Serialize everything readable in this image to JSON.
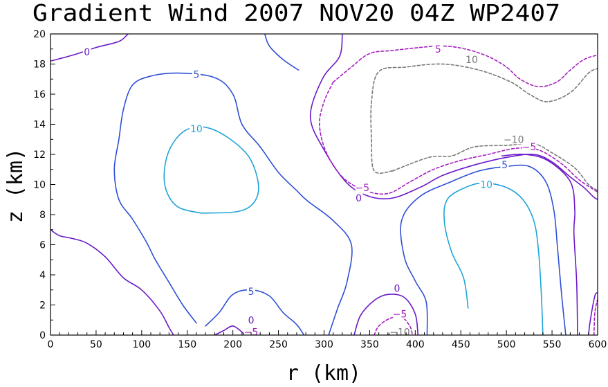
{
  "chart_data": {
    "type": "contour",
    "title": "Gradient Wind 2007 NOV20 04Z  WP2407",
    "xlabel": "r (km)",
    "ylabel": "z (km)",
    "xlim": [
      0,
      600
    ],
    "ylim": [
      0,
      20
    ],
    "xticks": [
      0,
      50,
      100,
      150,
      200,
      250,
      300,
      350,
      400,
      450,
      500,
      550,
      600
    ],
    "yticks": [
      0,
      2,
      4,
      6,
      8,
      10,
      12,
      14,
      16,
      18,
      20
    ],
    "colors": {
      "10": "#1fa3d9",
      "5": "#2f4fd4",
      "0": "#6a19c8",
      "-5": "#a51fbf",
      "-10": "#777777"
    },
    "contours": [
      {
        "level": 0,
        "color_key": "0",
        "dashed": false,
        "points": [
          [
            0,
            18.2
          ],
          [
            25,
            18.6
          ],
          [
            50,
            19.1
          ],
          [
            75,
            19.5
          ],
          [
            85,
            20
          ]
        ]
      },
      {
        "level": 5,
        "color_key": "5",
        "dashed": false,
        "points": [
          [
            235,
            20
          ],
          [
            240,
            19.2
          ],
          [
            255,
            18.3
          ],
          [
            272,
            17.6
          ]
        ]
      },
      {
        "level": 0,
        "color_key": "0",
        "dashed": false,
        "points": [
          [
            0,
            7
          ],
          [
            10,
            6.6
          ],
          [
            25,
            6.4
          ],
          [
            40,
            6.1
          ],
          [
            60,
            5.2
          ],
          [
            80,
            3.8
          ],
          [
            100,
            3
          ],
          [
            120,
            1.6
          ],
          [
            130,
            0.5
          ],
          [
            135,
            0
          ]
        ]
      },
      {
        "level": 5,
        "color_key": "5",
        "dashed": false,
        "points": [
          [
            160,
            0.8
          ],
          [
            145,
            2
          ],
          [
            130,
            3.5
          ],
          [
            115,
            5
          ],
          [
            105,
            6.2
          ],
          [
            90,
            7.7
          ],
          [
            75,
            9
          ],
          [
            70,
            11
          ],
          [
            75,
            13
          ],
          [
            80,
            15
          ],
          [
            90,
            16.6
          ],
          [
            110,
            17.2
          ],
          [
            140,
            17.4
          ],
          [
            180,
            17.1
          ],
          [
            200,
            16
          ],
          [
            210,
            14
          ],
          [
            230,
            12.5
          ],
          [
            250,
            10.8
          ],
          [
            270,
            9.6
          ],
          [
            282,
            8.9
          ],
          [
            310,
            7.6
          ],
          [
            330,
            6
          ],
          [
            325,
            3.5
          ],
          [
            315,
            1.8
          ],
          [
            305,
            0
          ]
        ]
      },
      {
        "level": 5,
        "color_key": "5",
        "dashed": false,
        "points": [
          [
            170,
            0.6
          ],
          [
            185,
            1.5
          ],
          [
            200,
            2.7
          ],
          [
            220,
            3
          ],
          [
            240,
            2.6
          ],
          [
            255,
            1.5
          ],
          [
            270,
            0.7
          ],
          [
            278,
            0
          ]
        ]
      },
      {
        "level": 10,
        "color_key": "10",
        "dashed": false,
        "points": [
          [
            165,
            8.1
          ],
          [
            140,
            8.5
          ],
          [
            127,
            9.6
          ],
          [
            125,
            11
          ],
          [
            132,
            12.5
          ],
          [
            148,
            13.6
          ],
          [
            170,
            13.8
          ],
          [
            195,
            13.1
          ],
          [
            218,
            11.8
          ],
          [
            228,
            10
          ],
          [
            223,
            8.8
          ],
          [
            205,
            8.2
          ],
          [
            165,
            8.1
          ]
        ]
      },
      {
        "level": 0,
        "color_key": "0",
        "dashed": false,
        "points": [
          [
            180,
            0
          ],
          [
            190,
            0.3
          ],
          [
            200,
            0.6
          ],
          [
            210,
            0.2
          ],
          [
            213,
            0
          ]
        ]
      },
      {
        "level": 0,
        "color_key": "0",
        "dashed": false,
        "points": [
          [
            320,
            20
          ],
          [
            317,
            18.5
          ],
          [
            298,
            17
          ],
          [
            285,
            14.5
          ],
          [
            300,
            12.3
          ],
          [
            325,
            10.1
          ],
          [
            350,
            9.2
          ],
          [
            375,
            9.1
          ],
          [
            405,
            9.8
          ],
          [
            430,
            10.6
          ],
          [
            465,
            11.3
          ],
          [
            500,
            11.8
          ],
          [
            530,
            12
          ],
          [
            550,
            11.5
          ],
          [
            570,
            10.5
          ],
          [
            585,
            9.8
          ],
          [
            595,
            9.2
          ],
          [
            600,
            9
          ]
        ]
      },
      {
        "level": -5,
        "color_key": "-5",
        "dashed": true,
        "points": [
          [
            310,
            16.8
          ],
          [
            330,
            17.8
          ],
          [
            350,
            18.7
          ],
          [
            375,
            18.9
          ],
          [
            405,
            19.1
          ],
          [
            430,
            19.2
          ],
          [
            455,
            19
          ],
          [
            480,
            18.5
          ],
          [
            500,
            17.8
          ],
          [
            515,
            17
          ],
          [
            535,
            16.5
          ],
          [
            555,
            16.8
          ],
          [
            570,
            17.6
          ],
          [
            585,
            18.3
          ],
          [
            600,
            18.6
          ]
        ]
      },
      {
        "level": -5,
        "color_key": "-5",
        "dashed": true,
        "points": [
          [
            310,
            16.8
          ],
          [
            300,
            15.5
          ],
          [
            295,
            14
          ],
          [
            302,
            12.2
          ],
          [
            320,
            10.5
          ],
          [
            345,
            9.6
          ],
          [
            370,
            9.4
          ],
          [
            395,
            10.2
          ],
          [
            420,
            11
          ],
          [
            450,
            11.6
          ],
          [
            480,
            12
          ],
          [
            510,
            12.4
          ],
          [
            535,
            12.3
          ],
          [
            560,
            11.4
          ],
          [
            580,
            10.3
          ],
          [
            600,
            9.5
          ]
        ]
      },
      {
        "level": -10,
        "color_key": "-10",
        "dashed": true,
        "points": [
          [
            375,
            10.9
          ],
          [
            355,
            10.9
          ],
          [
            352,
            13
          ],
          [
            352,
            15.5
          ],
          [
            360,
            17.5
          ],
          [
            390,
            17.8
          ],
          [
            430,
            18
          ],
          [
            470,
            17.6
          ],
          [
            505,
            16.8
          ],
          [
            525,
            16
          ],
          [
            545,
            15.5
          ],
          [
            570,
            16.1
          ],
          [
            590,
            17.4
          ],
          [
            600,
            17.7
          ]
        ]
      },
      {
        "level": -10,
        "color_key": "-10",
        "dashed": true,
        "points": [
          [
            375,
            10.9
          ],
          [
            415,
            11.8
          ],
          [
            440,
            11.9
          ],
          [
            465,
            12.5
          ],
          [
            500,
            12.6
          ],
          [
            530,
            12.7
          ],
          [
            550,
            12.1
          ],
          [
            575,
            11.1
          ],
          [
            590,
            10
          ],
          [
            600,
            9.6
          ]
        ]
      },
      {
        "level": 5,
        "color_key": "5",
        "dashed": false,
        "points": [
          [
            413,
            0
          ],
          [
            412,
            2.2
          ],
          [
            400,
            3.6
          ],
          [
            388,
            5.2
          ],
          [
            385,
            7.6
          ],
          [
            405,
            9.2
          ],
          [
            440,
            10.2
          ],
          [
            470,
            10.9
          ],
          [
            500,
            11.2
          ],
          [
            525,
            11.2
          ],
          [
            543,
            10.2
          ],
          [
            552,
            8.3
          ],
          [
            556,
            5.8
          ],
          [
            560,
            3
          ],
          [
            565,
            0
          ]
        ]
      },
      {
        "level": 10,
        "color_key": "10",
        "dashed": false,
        "points": [
          [
            458,
            1.8
          ],
          [
            453,
            3.8
          ],
          [
            440,
            5.5
          ],
          [
            432,
            7.5
          ],
          [
            435,
            9
          ],
          [
            455,
            9.8
          ],
          [
            475,
            10.1
          ],
          [
            500,
            9.8
          ],
          [
            518,
            9
          ],
          [
            530,
            7.6
          ],
          [
            535,
            5.7
          ],
          [
            538,
            3
          ],
          [
            540,
            0
          ]
        ]
      },
      {
        "level": 0,
        "color_key": "0",
        "dashed": false,
        "points": [
          [
            578,
            0
          ],
          [
            577,
            3.5
          ],
          [
            574,
            6.8
          ],
          [
            575,
            8.3
          ],
          [
            570,
            10.2
          ],
          [
            545,
            11.6
          ],
          [
            520,
            12
          ],
          [
            495,
            11.9
          ]
        ]
      },
      {
        "level": 0,
        "color_key": "0",
        "dashed": false,
        "points": [
          [
            333,
            0
          ],
          [
            340,
            1.3
          ],
          [
            355,
            2.3
          ],
          [
            370,
            2.7
          ],
          [
            388,
            2.5
          ],
          [
            400,
            1.4
          ],
          [
            403,
            0
          ]
        ]
      },
      {
        "level": -5,
        "color_key": "-5",
        "dashed": true,
        "points": [
          [
            355,
            0
          ],
          [
            360,
            0.6
          ],
          [
            372,
            1.1
          ],
          [
            385,
            1.2
          ],
          [
            394,
            0.6
          ],
          [
            397,
            0
          ]
        ]
      },
      {
        "level": -10,
        "color_key": "-10",
        "dashed": true,
        "points": [
          [
            370,
            0
          ],
          [
            378,
            0.3
          ],
          [
            388,
            0.2
          ],
          [
            390,
            0
          ]
        ]
      },
      {
        "level": 0,
        "color_key": "0",
        "dashed": false,
        "points": [
          [
            590,
            0
          ],
          [
            592,
            1
          ],
          [
            597,
            2.6
          ],
          [
            600,
            2.8
          ]
        ]
      },
      {
        "level": -5,
        "color_key": "-5",
        "dashed": true,
        "points": [
          [
            596,
            0
          ],
          [
            597,
            1.5
          ],
          [
            600,
            2.4
          ]
        ]
      }
    ],
    "contour_labels": [
      {
        "text": "0",
        "x": 40,
        "y": 18.8,
        "color_key": "0"
      },
      {
        "text": "5",
        "x": 160,
        "y": 17.3,
        "color_key": "5"
      },
      {
        "text": "10",
        "x": 160,
        "y": 13.7,
        "color_key": "10"
      },
      {
        "text": "5",
        "x": 220,
        "y": 2.9,
        "color_key": "5"
      },
      {
        "text": "0",
        "x": 220,
        "y": 1,
        "color_key": "0"
      },
      {
        "text": "−5",
        "x": 220,
        "y": 0.2,
        "color_key": "-5"
      },
      {
        "text": "0",
        "x": 338,
        "y": 9.1,
        "color_key": "0"
      },
      {
        "text": "−5",
        "x": 342,
        "y": 9.8,
        "color_key": "-5"
      },
      {
        "text": "5",
        "x": 498,
        "y": 11.3,
        "color_key": "5"
      },
      {
        "text": "10",
        "x": 478,
        "y": 10,
        "color_key": "10"
      },
      {
        "text": "−5",
        "x": 525,
        "y": 12.5,
        "color_key": "-5"
      },
      {
        "text": "−10",
        "x": 508,
        "y": 13,
        "color_key": "-10"
      },
      {
        "text": "5",
        "x": 425,
        "y": 19,
        "color_key": "-5"
      },
      {
        "text": "10",
        "x": 462,
        "y": 18.3,
        "color_key": "-10"
      },
      {
        "text": "0",
        "x": 380,
        "y": 3.1,
        "color_key": "0"
      },
      {
        "text": "−5",
        "x": 383,
        "y": 1.4,
        "color_key": "-5"
      },
      {
        "text": "−10",
        "x": 383,
        "y": 0.2,
        "color_key": "-10"
      }
    ]
  }
}
